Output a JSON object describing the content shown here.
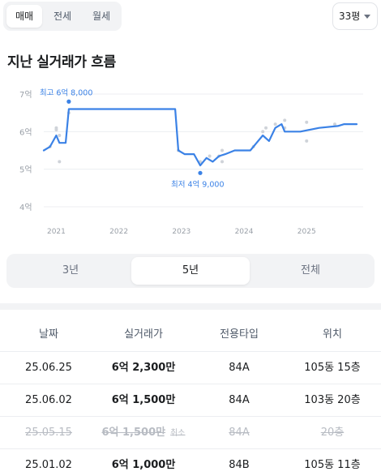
{
  "tabs": [
    {
      "label": "매매",
      "active": true
    },
    {
      "label": "전세",
      "active": false
    },
    {
      "label": "월세",
      "active": false
    }
  ],
  "size_select": {
    "value": "33평",
    "icon": "chevron-down-icon"
  },
  "section_title": "지난 실거래가 흐름",
  "chart_data": {
    "type": "line",
    "title": "",
    "xlabel": "",
    "ylabel": "",
    "x_ticks": [
      "2021",
      "2022",
      "2023",
      "2024",
      "2025"
    ],
    "y_ticks": [
      "4억",
      "5억",
      "6억",
      "7억"
    ],
    "ylim": [
      4,
      7
    ],
    "xlim": [
      2020.8,
      2025.8
    ],
    "grid": true,
    "line_color": "#3b82e6",
    "annotations": {
      "max": {
        "label": "최고 6억 8,000",
        "x": 2021.2,
        "y": 6.8
      },
      "min": {
        "label": "최저 4억 9,000",
        "x": 2023.3,
        "y": 4.9
      }
    },
    "series": [
      {
        "values": [
          [
            2020.8,
            5.5
          ],
          [
            2020.9,
            5.6
          ],
          [
            2021.0,
            5.9
          ],
          [
            2021.05,
            5.7
          ],
          [
            2021.1,
            5.7
          ],
          [
            2021.15,
            5.7
          ],
          [
            2021.2,
            6.6
          ],
          [
            2021.4,
            6.6
          ],
          [
            2022.0,
            6.6
          ],
          [
            2022.5,
            6.6
          ],
          [
            2022.9,
            6.6
          ],
          [
            2022.95,
            5.5
          ],
          [
            2023.05,
            5.4
          ],
          [
            2023.2,
            5.4
          ],
          [
            2023.3,
            5.1
          ],
          [
            2023.4,
            5.3
          ],
          [
            2023.5,
            5.2
          ],
          [
            2023.6,
            5.35
          ],
          [
            2023.7,
            5.4
          ],
          [
            2023.85,
            5.5
          ],
          [
            2024.1,
            5.5
          ],
          [
            2024.2,
            5.7
          ],
          [
            2024.3,
            5.9
          ],
          [
            2024.4,
            5.75
          ],
          [
            2024.5,
            6.1
          ],
          [
            2024.6,
            6.2
          ],
          [
            2024.65,
            6.0
          ],
          [
            2024.9,
            6.0
          ],
          [
            2025.2,
            6.1
          ],
          [
            2025.5,
            6.15
          ],
          [
            2025.6,
            6.2
          ],
          [
            2025.8,
            6.2
          ]
        ]
      }
    ],
    "scatter": [
      [
        2020.9,
        5.6
      ],
      [
        2021.0,
        6.05
      ],
      [
        2021.0,
        6.1
      ],
      [
        2021.05,
        5.2
      ],
      [
        2021.05,
        5.9
      ],
      [
        2021.2,
        6.5
      ],
      [
        2021.2,
        6.8
      ],
      [
        2022.95,
        5.5
      ],
      [
        2023.3,
        5.2
      ],
      [
        2023.3,
        4.9
      ],
      [
        2023.45,
        5.35
      ],
      [
        2023.6,
        5.35
      ],
      [
        2023.65,
        5.5
      ],
      [
        2023.65,
        5.2
      ],
      [
        2024.15,
        5.6
      ],
      [
        2024.3,
        6.0
      ],
      [
        2024.35,
        6.1
      ],
      [
        2024.5,
        6.2
      ],
      [
        2024.65,
        6.1
      ],
      [
        2024.65,
        6.3
      ],
      [
        2025.0,
        5.75
      ],
      [
        2025.0,
        6.25
      ],
      [
        2025.45,
        6.2
      ]
    ]
  },
  "range_tabs": [
    {
      "label": "3년",
      "active": false
    },
    {
      "label": "5년",
      "active": true
    },
    {
      "label": "전체",
      "active": false
    }
  ],
  "table": {
    "headers": [
      "날짜",
      "실거래가",
      "전용타입",
      "위치"
    ],
    "rows": [
      {
        "date": "25.06.25",
        "price": "6억 2,300만",
        "type": "84A",
        "location": "105동 15층",
        "cancelled": false,
        "cancel_label": ""
      },
      {
        "date": "25.06.02",
        "price": "6억 1,500만",
        "type": "84A",
        "location": "103동 20층",
        "cancelled": false,
        "cancel_label": ""
      },
      {
        "date": "25.05.15",
        "price": "6억 1,500만",
        "type": "84A",
        "location": "20층",
        "cancelled": true,
        "cancel_label": "취소"
      },
      {
        "date": "25.01.02",
        "price": "6억 1,000만",
        "type": "84B",
        "location": "105동 11층",
        "cancelled": false,
        "cancel_label": ""
      }
    ]
  }
}
